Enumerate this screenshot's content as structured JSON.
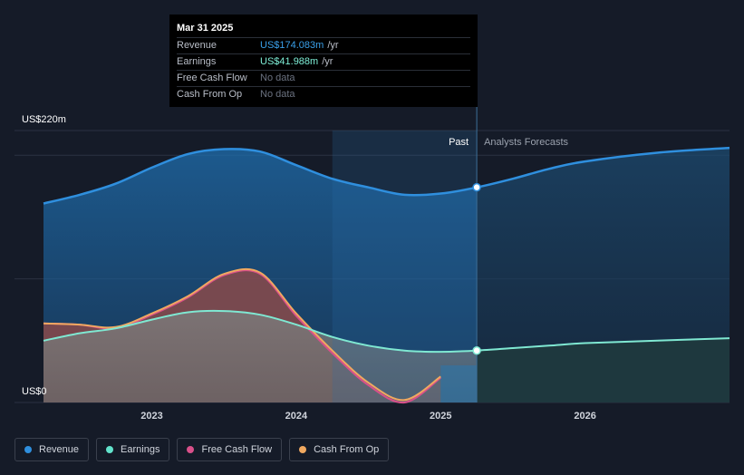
{
  "tooltip": {
    "date": "Mar 31 2025",
    "rows": [
      {
        "label": "Revenue",
        "value": "US$174.083m",
        "unit": "/yr"
      },
      {
        "label": "Earnings",
        "value": "US$41.988m",
        "unit": "/yr"
      },
      {
        "label": "Free Cash Flow",
        "value": "No data",
        "unit": ""
      },
      {
        "label": "Cash From Op",
        "value": "No data",
        "unit": ""
      }
    ]
  },
  "labels": {
    "y_top": "US$220m",
    "y_bottom": "US$0",
    "past": "Past",
    "forecast": "Analysts Forecasts"
  },
  "legend": [
    {
      "label": "Revenue",
      "color": "#2f8fde"
    },
    {
      "label": "Earnings",
      "color": "#62e3cc"
    },
    {
      "label": "Free Cash Flow",
      "color": "#d9508a"
    },
    {
      "label": "Cash From Op",
      "color": "#f0a860"
    }
  ],
  "colors": {
    "background": "#151b28",
    "revenue": "#2f8fde",
    "earnings": "#7fe8d2",
    "fcf": "#d9508a",
    "cfo": "#f0a860"
  },
  "chart_data": {
    "type": "area",
    "ylim": [
      0,
      220
    ],
    "xlim": [
      2022.25,
      2027.0
    ],
    "x_ticks": [
      "2023",
      "2024",
      "2025",
      "2026"
    ],
    "x_tick_values": [
      2023,
      2024,
      2025,
      2026
    ],
    "past_end": 2025.25,
    "series": [
      {
        "name": "Revenue",
        "x": [
          2022.25,
          2022.5,
          2022.75,
          2023.0,
          2023.25,
          2023.5,
          2023.75,
          2024.0,
          2024.25,
          2024.5,
          2024.75,
          2025.0,
          2025.25,
          2025.5,
          2025.75,
          2026.0,
          2026.5,
          2027.0
        ],
        "values": [
          161,
          168,
          177,
          190,
          201,
          205,
          203,
          192,
          181,
          174,
          168,
          169,
          174,
          181,
          189,
          195,
          202,
          206
        ]
      },
      {
        "name": "Earnings",
        "x": [
          2022.25,
          2022.5,
          2022.75,
          2023.0,
          2023.25,
          2023.5,
          2023.75,
          2024.0,
          2024.25,
          2024.5,
          2024.75,
          2025.0,
          2025.25,
          2025.5,
          2025.75,
          2026.0,
          2026.5,
          2027.0
        ],
        "values": [
          50,
          56,
          60,
          67,
          73,
          74,
          71,
          63,
          53,
          46,
          42,
          41,
          42,
          44,
          46,
          48,
          50,
          52
        ]
      },
      {
        "name": "Free Cash Flow",
        "x": [
          2022.25,
          2022.5,
          2022.75,
          2023.0,
          2023.25,
          2023.5,
          2023.75,
          2024.0,
          2024.25,
          2024.5,
          2024.75,
          2025.0
        ],
        "values": [
          64,
          63,
          60,
          71,
          85,
          103,
          104,
          70,
          40,
          14,
          0,
          20
        ]
      },
      {
        "name": "Cash From Op",
        "x": [
          2022.25,
          2022.5,
          2022.75,
          2023.0,
          2023.25,
          2023.5,
          2023.75,
          2024.0,
          2024.25,
          2024.5,
          2024.75,
          2025.0
        ],
        "values": [
          64,
          63,
          61,
          72,
          86,
          104,
          105,
          72,
          42,
          16,
          2,
          21
        ]
      }
    ],
    "markers": [
      {
        "series": "Revenue",
        "x": 2025.25,
        "value": 174.083
      },
      {
        "series": "Earnings",
        "x": 2025.25,
        "value": 41.988
      }
    ]
  }
}
